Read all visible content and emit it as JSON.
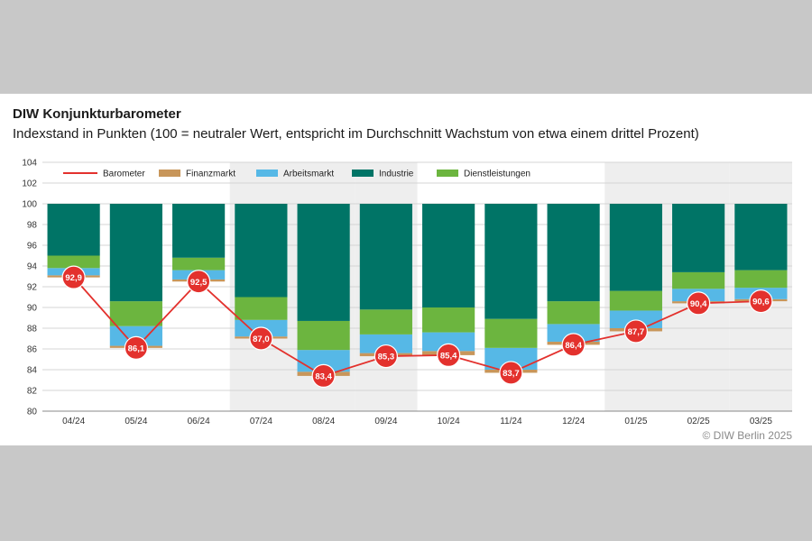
{
  "title": "DIW Konjunkturbarometer",
  "subtitle": "Indexstand in Punkten (100 = neutraler Wert, entspricht im Durchschnitt Wachstum von etwa einem drittel Prozent)",
  "credit": "© DIW Berlin 2025",
  "chart_data": {
    "type": "bar",
    "categories": [
      "04/24",
      "05/24",
      "06/24",
      "07/24",
      "08/24",
      "09/24",
      "10/24",
      "11/24",
      "12/24",
      "01/25",
      "02/25",
      "03/25"
    ],
    "ylim": [
      80,
      104
    ],
    "yticks": [
      80,
      82,
      84,
      86,
      88,
      90,
      92,
      94,
      96,
      98,
      100,
      102,
      104
    ],
    "grid": true,
    "legend_position": "top-left",
    "colors": {
      "barometer": "#e3312d",
      "finanzmarkt": "#c8965a",
      "arbeitsmarkt": "#56b8e6",
      "industrie": "#007466",
      "dienstleistungen": "#6cb53f",
      "shade": "#eeeeee"
    },
    "legend": [
      {
        "key": "barometer",
        "label": "Barometer"
      },
      {
        "key": "finanzmarkt",
        "label": "Finanzmarkt"
      },
      {
        "key": "arbeitsmarkt",
        "label": "Arbeitsmarkt"
      },
      {
        "key": "industrie",
        "label": "Industrie"
      },
      {
        "key": "dienstleistungen",
        "label": "Dienstleistungen"
      }
    ],
    "stack_boundaries": [
      {
        "bottom": 92.9,
        "finanz_top": 93.1,
        "arbeit_top": 93.8,
        "dienst_top": 95.0
      },
      {
        "bottom": 86.1,
        "finanz_top": 86.3,
        "arbeit_top": 88.2,
        "dienst_top": 90.6
      },
      {
        "bottom": 92.5,
        "finanz_top": 92.7,
        "arbeit_top": 93.6,
        "dienst_top": 94.8
      },
      {
        "bottom": 87.0,
        "finanz_top": 87.2,
        "arbeit_top": 88.8,
        "dienst_top": 91.0
      },
      {
        "bottom": 83.4,
        "finanz_top": 83.8,
        "arbeit_top": 85.9,
        "dienst_top": 88.7
      },
      {
        "bottom": 85.3,
        "finanz_top": 85.6,
        "arbeit_top": 87.4,
        "dienst_top": 89.8
      },
      {
        "bottom": 85.4,
        "finanz_top": 85.8,
        "arbeit_top": 87.6,
        "dienst_top": 90.0
      },
      {
        "bottom": 83.7,
        "finanz_top": 84.0,
        "arbeit_top": 86.1,
        "dienst_top": 88.9
      },
      {
        "bottom": 86.4,
        "finanz_top": 86.7,
        "arbeit_top": 88.4,
        "dienst_top": 90.6
      },
      {
        "bottom": 87.7,
        "finanz_top": 88.0,
        "arbeit_top": 89.7,
        "dienst_top": 91.6
      },
      {
        "bottom": 90.4,
        "finanz_top": 90.6,
        "arbeit_top": 91.8,
        "dienst_top": 93.4
      },
      {
        "bottom": 90.6,
        "finanz_top": 90.8,
        "arbeit_top": 91.9,
        "dienst_top": 93.6
      }
    ],
    "bar_top": 100,
    "shaded_categories": [
      3,
      4,
      5,
      9,
      10,
      11
    ],
    "series": [
      {
        "name": "Barometer",
        "values": [
          92.9,
          86.1,
          92.5,
          87.0,
          83.4,
          85.3,
          85.4,
          83.7,
          86.4,
          87.7,
          90.4,
          90.6
        ]
      }
    ],
    "value_labels": [
      "92,9",
      "86,1",
      "92,5",
      "87,0",
      "83,4",
      "85,3",
      "85,4",
      "83,7",
      "86,4",
      "87,7",
      "90,4",
      "90,6"
    ]
  }
}
